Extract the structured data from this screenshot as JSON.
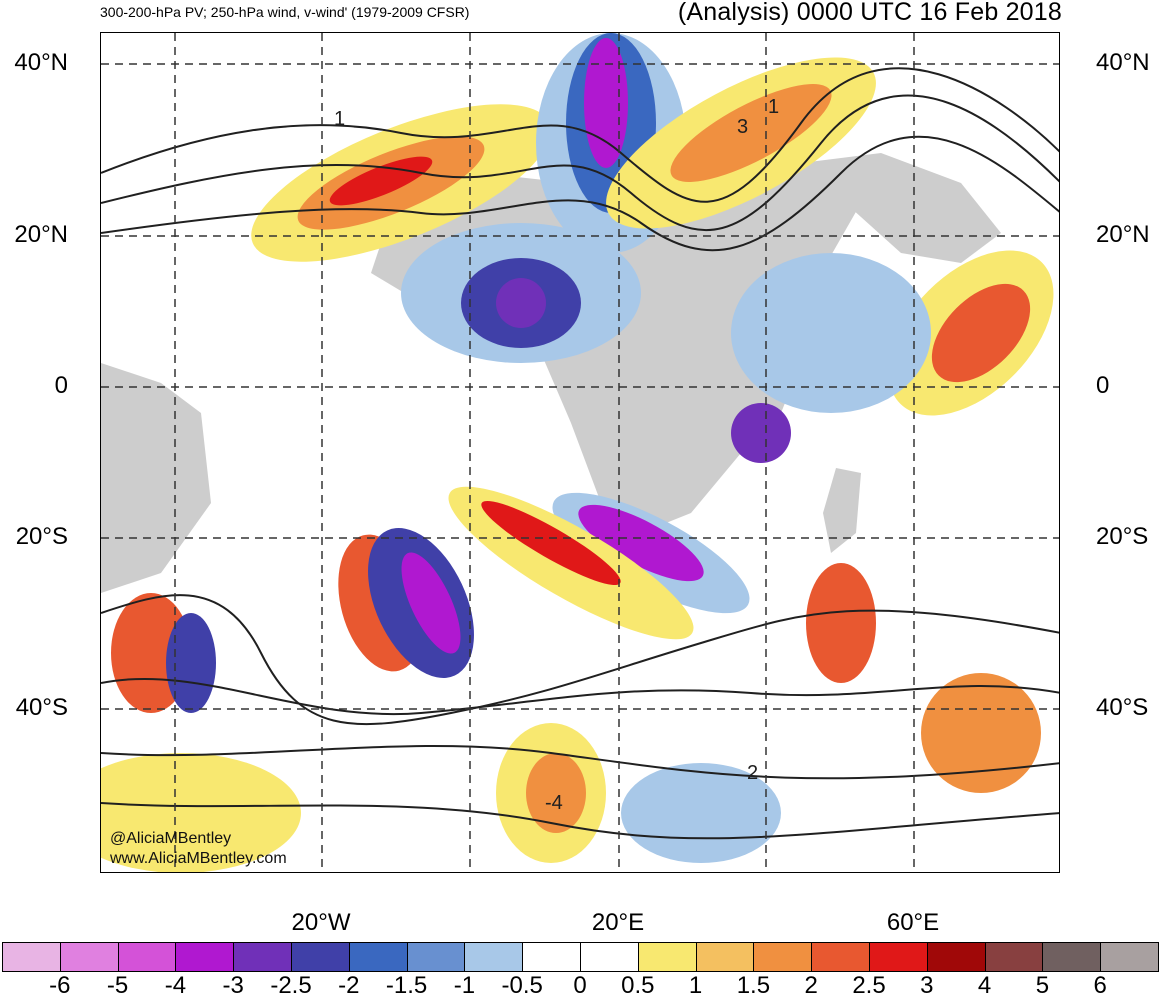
{
  "header": {
    "left_title": "300-200-hPa PV; 250-hPa wind, v-wind' (1979-2009 CFSR)",
    "right_title": "(Analysis) 0000 UTC 16 Feb 2018"
  },
  "axes": {
    "lat_labels_left": [
      "40°N",
      "20°N",
      "0",
      "20°S",
      "40°S"
    ],
    "lat_labels_right": [
      "40°N",
      "20°N",
      "0",
      "20°S",
      "40°S"
    ],
    "lon_labels": [
      "20°W",
      "20°E",
      "60°E"
    ]
  },
  "contour_labels": [
    "1",
    "3",
    "1",
    "2",
    "-4"
  ],
  "credits": {
    "handle": "@AliciaMBentley",
    "site": "www.AliciaMBentley.com"
  },
  "colorbar": {
    "labels": [
      "-6",
      "-5",
      "-4",
      "-3",
      "-2.5",
      "-2",
      "-1.5",
      "-1",
      "-0.5",
      "0",
      "0.5",
      "1",
      "1.5",
      "2",
      "2.5",
      "3",
      "4",
      "5",
      "6"
    ],
    "colors": [
      "#e8b4e4",
      "#e080e0",
      "#d452d8",
      "#b018d0",
      "#7030b8",
      "#4040a8",
      "#3a68c0",
      "#6890d0",
      "#a8c8e8",
      "#ffffff",
      "#ffffff",
      "#f8e870",
      "#f4c060",
      "#f09040",
      "#e85830",
      "#e01818",
      "#a00808",
      "#884040",
      "#706060",
      "#a8a0a0"
    ]
  },
  "colors": {
    "land": "#c8c8c8",
    "contour": "#202020"
  }
}
